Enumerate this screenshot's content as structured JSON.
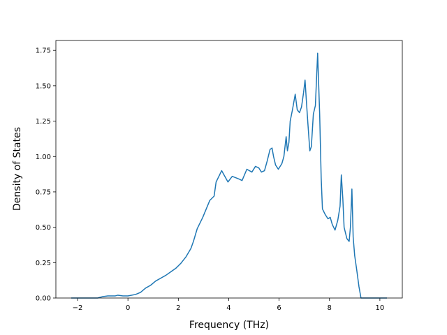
{
  "chart_data": {
    "type": "line",
    "xlabel": "Frequency (THz)",
    "ylabel": "Density of States",
    "xlim": [
      -2.86,
      10.89
    ],
    "ylim": [
      0,
      1.82
    ],
    "xticks": [
      {
        "value": -2,
        "label": "−2"
      },
      0,
      2,
      4,
      6,
      8,
      10
    ],
    "yticks": [
      {
        "value": 0,
        "label": "0.00"
      },
      0.25,
      {
        "value": 0.5,
        "label": "0.50"
      },
      0.75,
      {
        "value": 1,
        "label": "1.00"
      },
      1.25,
      {
        "value": 1.5,
        "label": "1.50"
      },
      1.75
    ],
    "series": [
      {
        "color": "#1f77b4",
        "x": [
          -2.25,
          -1.2,
          -1.0,
          -0.8,
          -0.5,
          -0.4,
          -0.2,
          0,
          0.3,
          0.5,
          0.7,
          0.9,
          1.1,
          1.3,
          1.5,
          1.7,
          1.9,
          2.1,
          2.3,
          2.5,
          2.6,
          2.75,
          2.97,
          3.25,
          3.42,
          3.5,
          3.72,
          3.97,
          4.14,
          4.42,
          4.53,
          4.72,
          4.92,
          5.06,
          5.19,
          5.3,
          5.42,
          5.53,
          5.64,
          5.72,
          5.78,
          5.86,
          5.97,
          6.11,
          6.19,
          6.28,
          6.33,
          6.39,
          6.44,
          6.53,
          6.64,
          6.72,
          6.81,
          6.89,
          6.97,
          7.03,
          7.08,
          7.14,
          7.22,
          7.28,
          7.36,
          7.44,
          7.53,
          7.61,
          7.67,
          7.72,
          7.83,
          7.94,
          8.03,
          8.11,
          8.22,
          8.33,
          8.42,
          8.47,
          8.53,
          8.58,
          8.69,
          8.78,
          8.83,
          8.89,
          8.94,
          9.0,
          9.08,
          9.17,
          9.25,
          10.28
        ],
        "values": [
          0,
          0,
          0.01,
          0.015,
          0.015,
          0.02,
          0.015,
          0.015,
          0.025,
          0.04,
          0.07,
          0.09,
          0.12,
          0.14,
          0.16,
          0.185,
          0.21,
          0.245,
          0.29,
          0.35,
          0.4,
          0.49,
          0.57,
          0.69,
          0.72,
          0.82,
          0.9,
          0.82,
          0.86,
          0.84,
          0.83,
          0.91,
          0.89,
          0.93,
          0.92,
          0.89,
          0.9,
          0.97,
          1.05,
          1.06,
          1.0,
          0.94,
          0.91,
          0.95,
          1.0,
          1.14,
          1.04,
          1.1,
          1.25,
          1.33,
          1.44,
          1.33,
          1.31,
          1.35,
          1.45,
          1.54,
          1.4,
          1.24,
          1.04,
          1.07,
          1.3,
          1.36,
          1.73,
          1.3,
          0.85,
          0.63,
          0.59,
          0.56,
          0.57,
          0.52,
          0.48,
          0.55,
          0.65,
          0.87,
          0.7,
          0.5,
          0.42,
          0.4,
          0.5,
          0.77,
          0.43,
          0.3,
          0.2,
          0.08,
          0,
          0
        ]
      }
    ]
  }
}
